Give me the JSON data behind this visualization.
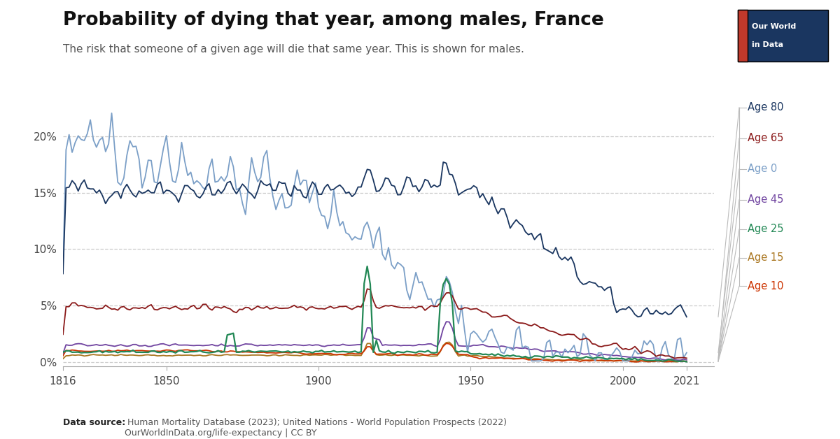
{
  "title": "Probability of dying that year, among males, France",
  "subtitle": "The risk that someone of a given age will die that same year. This is shown for males.",
  "datasource_bold": "Data source:",
  "datasource_rest": " Human Mortality Database (2023); United Nations - World Population Prospects (2022)\nOurWorldInData.org/life-expectancy | CC BY",
  "year_start": 1816,
  "year_end": 2021,
  "colors": {
    "Age 80": "#1a3660",
    "Age 65": "#8b1a1a",
    "Age 0": "#7b9fc7",
    "Age 45": "#7044a0",
    "Age 25": "#228855",
    "Age 15": "#aa7722",
    "Age 10": "#cc3300"
  },
  "yticks": [
    0,
    5,
    10,
    15,
    20
  ],
  "ylim": [
    -0.4,
    23.5
  ],
  "xlim": [
    1816,
    2030
  ],
  "background_color": "#ffffff",
  "owid_bg": "#1a3660",
  "owid_red": "#c0392b",
  "legend_labels": [
    "Age 80",
    "Age 65",
    "Age 0",
    "Age 45",
    "Age 25",
    "Age 15",
    "Age 10"
  ]
}
